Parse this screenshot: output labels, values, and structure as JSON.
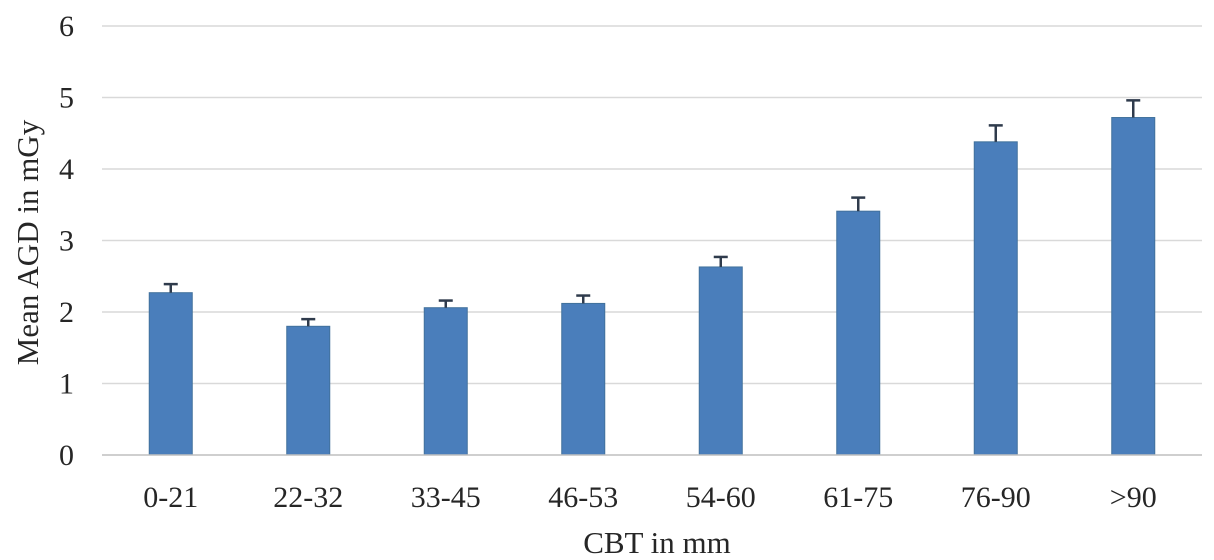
{
  "chart_data": {
    "type": "bar",
    "title": "",
    "xlabel": "CBT in mm",
    "ylabel": "Mean AGD in mGy",
    "categories": [
      "0-21",
      "22-32",
      "33-45",
      "46-53",
      "54-60",
      "61-75",
      "76-90",
      ">90"
    ],
    "series": [
      {
        "values": [
          2.27,
          1.8,
          2.06,
          2.12,
          2.63,
          3.41,
          4.38,
          4.72
        ],
        "error_plus": [
          0.12,
          0.1,
          0.1,
          0.11,
          0.14,
          0.19,
          0.23,
          0.24
        ],
        "color": "#4a7ebb"
      }
    ],
    "ylim": [
      0,
      6
    ],
    "yticks": [
      "0",
      "1",
      "2",
      "3",
      "4",
      "5",
      "6"
    ],
    "grid": "horizontal",
    "legend": "none"
  }
}
